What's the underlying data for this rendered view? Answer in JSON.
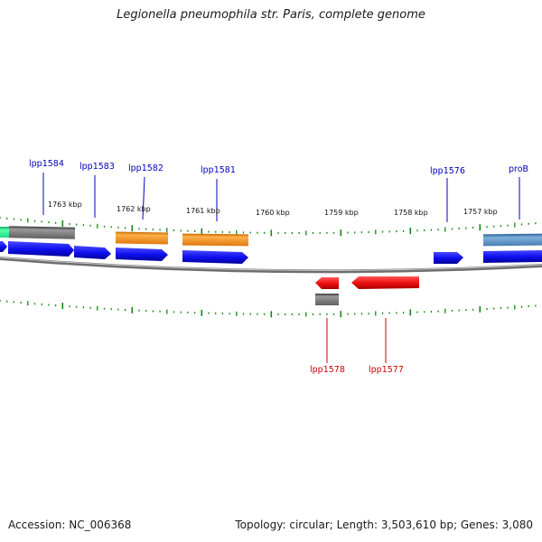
{
  "title": "Legionella pneumophila str. Paris, complete genome",
  "footer": {
    "accession": "Accession: NC_006368",
    "summary": "Topology: circular; Length: 3,503,610 bp; Genes: 3,080"
  },
  "colors": {
    "cds_forward": "#1010f0",
    "cds_reverse": "#ee1111",
    "orange_feature": "#f08c1a",
    "gray_feature": "#707070",
    "steelblue_feature": "#4a7fb5",
    "green_feature": "#22dd88",
    "tick_color": "#118811",
    "backbone": "#909090"
  },
  "kbp_labels": [
    "1763 kbp",
    "1762 kbp",
    "1761 kbp",
    "1760 kbp",
    "1759 kbp",
    "1758 kbp",
    "1757 kbp"
  ],
  "gene_labels_forward": [
    "lpp1584",
    "lpp1583",
    "lpp1582",
    "lpp1581",
    "lpp1576",
    "proB"
  ],
  "gene_labels_reverse": [
    "lpp1578",
    "lpp1577"
  ]
}
